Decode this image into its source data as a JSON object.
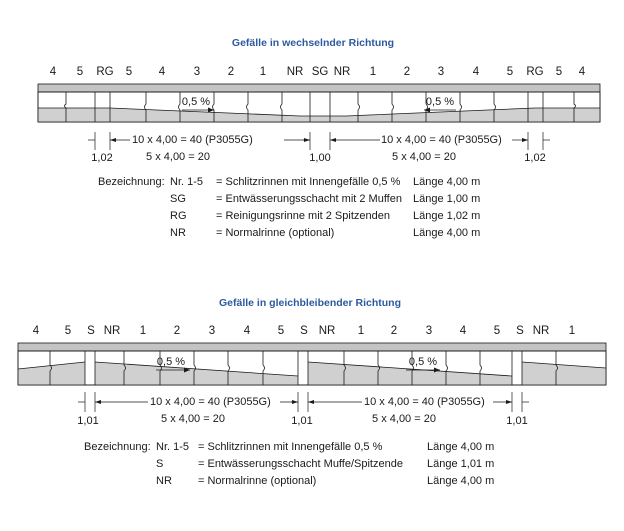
{
  "section1": {
    "title": "Gefälle in wechselnder Richtung",
    "labels": [
      "4",
      "5",
      "RG",
      "5",
      "4",
      "3",
      "2",
      "1",
      "NR",
      "SG",
      "NR",
      "1",
      "2",
      "3",
      "4",
      "5",
      "RG",
      "5",
      "4"
    ],
    "slope_labels": [
      "0,5 %",
      "0,5 %"
    ],
    "dim_10x": [
      "10 x 4,00 = 40 (P3055G)",
      "10 x 4,00 = 40 (P3055G)"
    ],
    "dim_5x": [
      "5 x 4,00 = 20",
      "5 x 4,00 = 20"
    ],
    "dim_small": [
      "1,02",
      "1,00",
      "1,02"
    ],
    "legend": {
      "heading": "Bezeichnung:",
      "rows": [
        {
          "code": "Nr. 1-5",
          "desc": "= Schlitzrinnen mit Innengefälle 0,5 %",
          "length": "Länge 4,00 m"
        },
        {
          "code": "SG",
          "desc": "= Entwässerungsschacht mit 2 Muffen",
          "length": "Länge 1,00 m"
        },
        {
          "code": "RG",
          "desc": "= Reinigungsrinne mit 2 Spitzenden",
          "length": "Länge 1,02 m"
        },
        {
          "code": "NR",
          "desc": "= Normalrinne (optional)",
          "length": "Länge 4,00 m"
        }
      ]
    }
  },
  "section2": {
    "title": "Gefälle in gleichbleibender Richtung",
    "labels": [
      "4",
      "5",
      "S",
      "NR",
      "1",
      "2",
      "3",
      "4",
      "5",
      "S",
      "NR",
      "1",
      "2",
      "3",
      "4",
      "5",
      "S",
      "NR",
      "1"
    ],
    "slope_labels": [
      "0,5 %",
      "0,5 %"
    ],
    "dim_10x": [
      "10 x 4,00 = 40 (P3055G)",
      "10 x 4,00 = 40 (P3055G)"
    ],
    "dim_5x": [
      "5 x 4,00 = 20",
      "5 x 4,00 = 20"
    ],
    "dim_small": [
      "1,01",
      "1,01",
      "1,01"
    ],
    "legend": {
      "heading": "Bezeichnung:",
      "rows": [
        {
          "code": "Nr. 1-5",
          "desc": "= Schlitzrinnen mit Innengefälle 0,5 %",
          "length": "Länge 4,00 m"
        },
        {
          "code": "S",
          "desc": "= Entwässerungsschacht Muffe/Spitzende",
          "length": "Länge 1,01 m"
        },
        {
          "code": "NR",
          "desc": "= Normalrinne (optional)",
          "length": "Länge 4,00 m"
        }
      ]
    }
  },
  "colors": {
    "title": "#2c5aa0",
    "channel_top": "#c8c8c8",
    "channel_fill": "#d4d4d4",
    "line": "#1a1a1a"
  }
}
